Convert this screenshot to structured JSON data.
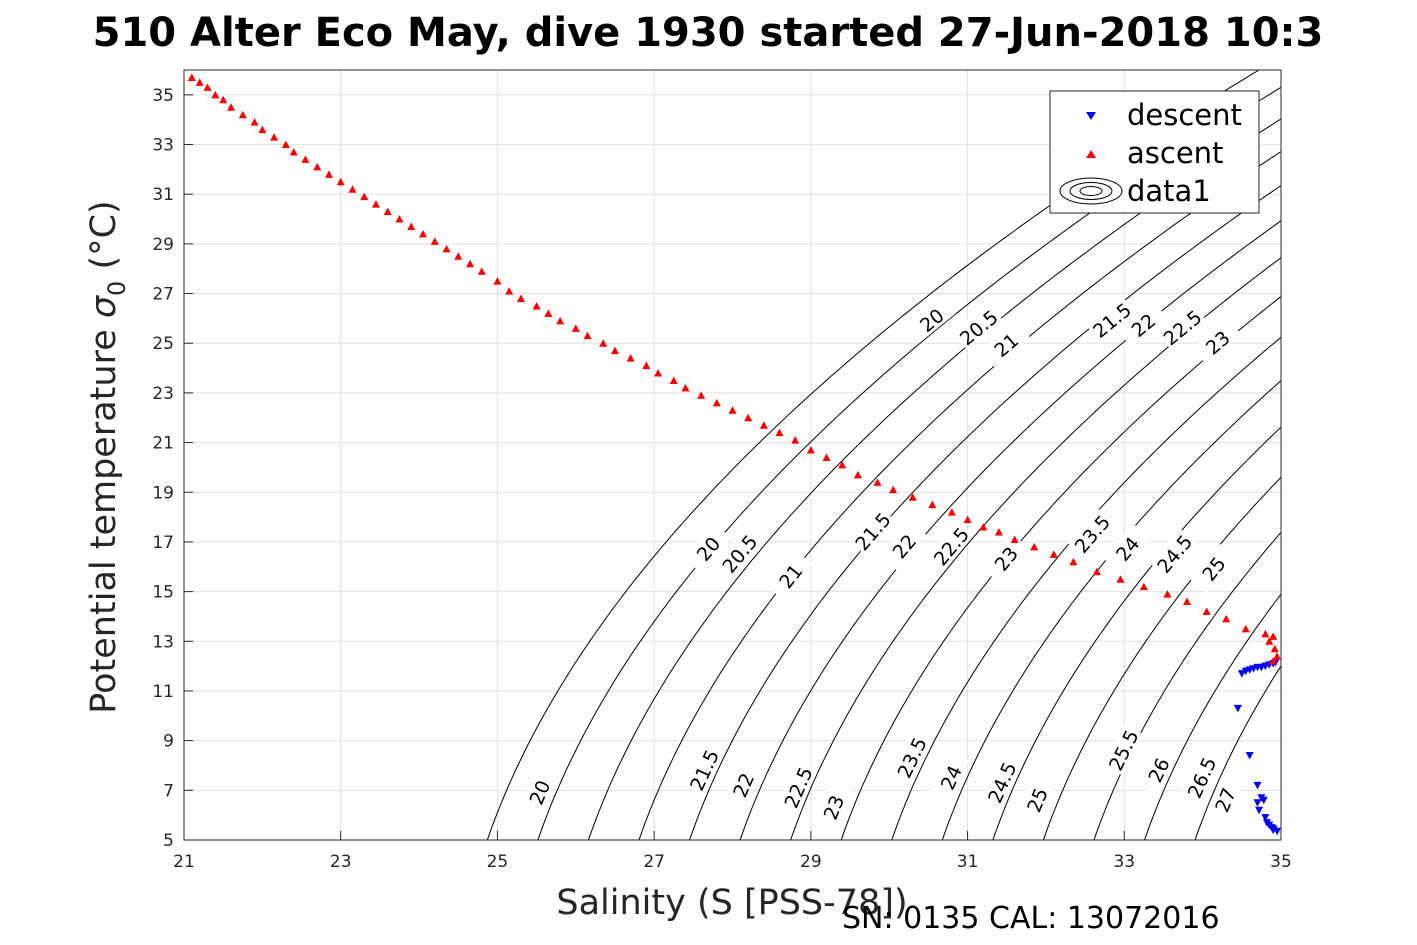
{
  "title": "510 Alter Eco May, dive 1930 started 27-Jun-2018 10:3",
  "footer": "SN: 0135  CAL: 13072016",
  "chart_data": {
    "type": "scatter",
    "xlabel": "Salinity (S [PSS-78])",
    "ylabel": "Potential temperature σ₀ (°C)",
    "ylabel_main": "Potential temperature ",
    "ylabel_sigma": "σ",
    "ylabel_sub": "0",
    "ylabel_unit": " (°C)",
    "xlim": [
      21,
      35
    ],
    "ylim": [
      5,
      36
    ],
    "xticks": [
      "21",
      "23",
      "25",
      "27",
      "29",
      "31",
      "33",
      "35"
    ],
    "yticks": [
      "5",
      "7",
      "9",
      "11",
      "13",
      "15",
      "17",
      "19",
      "21",
      "23",
      "25",
      "27",
      "29",
      "31",
      "33",
      "35"
    ],
    "grid": true,
    "legend": {
      "position": "top-right",
      "entries": [
        "descent",
        "ascent",
        "data1"
      ]
    },
    "series": [
      {
        "name": "descent",
        "marker": "triangle-down",
        "color": "#0000ff",
        "points": [
          [
            34.5,
            11.7
          ],
          [
            34.55,
            11.8
          ],
          [
            34.6,
            11.85
          ],
          [
            34.65,
            11.9
          ],
          [
            34.7,
            11.95
          ],
          [
            34.75,
            11.95
          ],
          [
            34.8,
            12.0
          ],
          [
            34.85,
            12.05
          ],
          [
            34.9,
            12.1
          ],
          [
            34.93,
            12.15
          ],
          [
            34.45,
            10.3
          ],
          [
            34.6,
            8.4
          ],
          [
            34.7,
            7.2
          ],
          [
            34.75,
            6.7
          ],
          [
            34.7,
            6.5
          ],
          [
            34.78,
            6.6
          ],
          [
            34.72,
            6.2
          ],
          [
            34.8,
            5.9
          ],
          [
            34.82,
            5.7
          ],
          [
            34.85,
            5.6
          ],
          [
            34.88,
            5.5
          ],
          [
            34.9,
            5.4
          ],
          [
            34.95,
            5.35
          ],
          [
            34.9,
            5.45
          ]
        ]
      },
      {
        "name": "ascent",
        "marker": "triangle-up",
        "color": "#ff0000",
        "points": [
          [
            21.1,
            35.7
          ],
          [
            21.2,
            35.5
          ],
          [
            21.3,
            35.3
          ],
          [
            21.4,
            35.0
          ],
          [
            21.5,
            34.8
          ],
          [
            21.6,
            34.5
          ],
          [
            21.75,
            34.2
          ],
          [
            21.9,
            33.9
          ],
          [
            22.0,
            33.6
          ],
          [
            22.15,
            33.3
          ],
          [
            22.3,
            33.0
          ],
          [
            22.4,
            32.7
          ],
          [
            22.55,
            32.4
          ],
          [
            22.7,
            32.1
          ],
          [
            22.85,
            31.8
          ],
          [
            23.0,
            31.5
          ],
          [
            23.15,
            31.2
          ],
          [
            23.3,
            30.9
          ],
          [
            23.45,
            30.6
          ],
          [
            23.6,
            30.3
          ],
          [
            23.75,
            30.0
          ],
          [
            23.9,
            29.7
          ],
          [
            24.05,
            29.4
          ],
          [
            24.2,
            29.1
          ],
          [
            24.35,
            28.8
          ],
          [
            24.5,
            28.5
          ],
          [
            24.65,
            28.2
          ],
          [
            24.8,
            27.9
          ],
          [
            25.0,
            27.5
          ],
          [
            25.15,
            27.1
          ],
          [
            25.3,
            26.8
          ],
          [
            25.5,
            26.5
          ],
          [
            25.65,
            26.2
          ],
          [
            25.8,
            25.9
          ],
          [
            26.0,
            25.6
          ],
          [
            26.15,
            25.3
          ],
          [
            26.35,
            25.0
          ],
          [
            26.5,
            24.7
          ],
          [
            26.7,
            24.4
          ],
          [
            26.9,
            24.1
          ],
          [
            27.05,
            23.8
          ],
          [
            27.25,
            23.5
          ],
          [
            27.4,
            23.2
          ],
          [
            27.6,
            22.9
          ],
          [
            27.8,
            22.6
          ],
          [
            28.0,
            22.3
          ],
          [
            28.2,
            22.0
          ],
          [
            28.4,
            21.7
          ],
          [
            28.6,
            21.4
          ],
          [
            28.8,
            21.1
          ],
          [
            29.0,
            20.7
          ],
          [
            29.2,
            20.4
          ],
          [
            29.4,
            20.1
          ],
          [
            29.6,
            19.7
          ],
          [
            29.85,
            19.4
          ],
          [
            30.05,
            19.1
          ],
          [
            30.3,
            18.8
          ],
          [
            30.55,
            18.5
          ],
          [
            30.8,
            18.2
          ],
          [
            31.0,
            17.9
          ],
          [
            31.2,
            17.6
          ],
          [
            31.4,
            17.4
          ],
          [
            31.6,
            17.1
          ],
          [
            31.85,
            16.8
          ],
          [
            32.1,
            16.5
          ],
          [
            32.35,
            16.2
          ],
          [
            32.65,
            15.8
          ],
          [
            32.95,
            15.5
          ],
          [
            33.25,
            15.2
          ],
          [
            33.55,
            14.9
          ],
          [
            33.8,
            14.6
          ],
          [
            34.05,
            14.2
          ],
          [
            34.3,
            13.9
          ],
          [
            34.55,
            13.5
          ],
          [
            34.8,
            13.3
          ],
          [
            34.9,
            13.2
          ],
          [
            34.85,
            13.0
          ],
          [
            34.92,
            12.7
          ],
          [
            34.95,
            12.4
          ],
          [
            34.9,
            12.2
          ]
        ]
      }
    ],
    "contours": {
      "name": "data1",
      "levels": [
        20,
        20.5,
        21,
        21.5,
        22,
        22.5,
        23,
        23.5,
        24,
        24.5,
        25,
        25.5,
        26,
        26.5,
        27
      ],
      "labels": [
        {
          "text": "20",
          "x": 25.55,
          "y": 6.9
        },
        {
          "text": "21.5",
          "x": 27.65,
          "y": 7.8
        },
        {
          "text": "22",
          "x": 28.15,
          "y": 7.2
        },
        {
          "text": "22.5",
          "x": 28.85,
          "y": 7.1
        },
        {
          "text": "23",
          "x": 29.3,
          "y": 6.3
        },
        {
          "text": "23.5",
          "x": 30.3,
          "y": 8.3
        },
        {
          "text": "24",
          "x": 30.8,
          "y": 7.5
        },
        {
          "text": "24.5",
          "x": 31.45,
          "y": 7.3
        },
        {
          "text": "25",
          "x": 31.9,
          "y": 6.6
        },
        {
          "text": "25.5",
          "x": 33.0,
          "y": 8.6
        },
        {
          "text": "26",
          "x": 33.45,
          "y": 7.8
        },
        {
          "text": "26.5",
          "x": 34.0,
          "y": 7.5
        },
        {
          "text": "27",
          "x": 34.3,
          "y": 6.6
        },
        {
          "text": "20",
          "x": 27.7,
          "y": 16.7
        },
        {
          "text": "20.5",
          "x": 28.1,
          "y": 16.5
        },
        {
          "text": "21",
          "x": 28.75,
          "y": 15.6
        },
        {
          "text": "21.5",
          "x": 29.8,
          "y": 17.4
        },
        {
          "text": "22",
          "x": 30.2,
          "y": 16.8
        },
        {
          "text": "22.5",
          "x": 30.8,
          "y": 16.8
        },
        {
          "text": "23",
          "x": 31.5,
          "y": 16.3
        },
        {
          "text": "23.5",
          "x": 32.6,
          "y": 17.3
        },
        {
          "text": "24",
          "x": 33.05,
          "y": 16.7
        },
        {
          "text": "24.5",
          "x": 33.65,
          "y": 16.5
        },
        {
          "text": "25",
          "x": 34.15,
          "y": 15.9
        },
        {
          "text": "20",
          "x": 30.55,
          "y": 25.9
        },
        {
          "text": "20.5",
          "x": 31.15,
          "y": 25.6
        },
        {
          "text": "21",
          "x": 31.5,
          "y": 24.9
        },
        {
          "text": "21.5",
          "x": 32.85,
          "y": 25.9
        },
        {
          "text": "22",
          "x": 33.25,
          "y": 25.7
        },
        {
          "text": "22.5",
          "x": 33.75,
          "y": 25.6
        },
        {
          "text": "23",
          "x": 34.2,
          "y": 25.0
        }
      ]
    }
  }
}
